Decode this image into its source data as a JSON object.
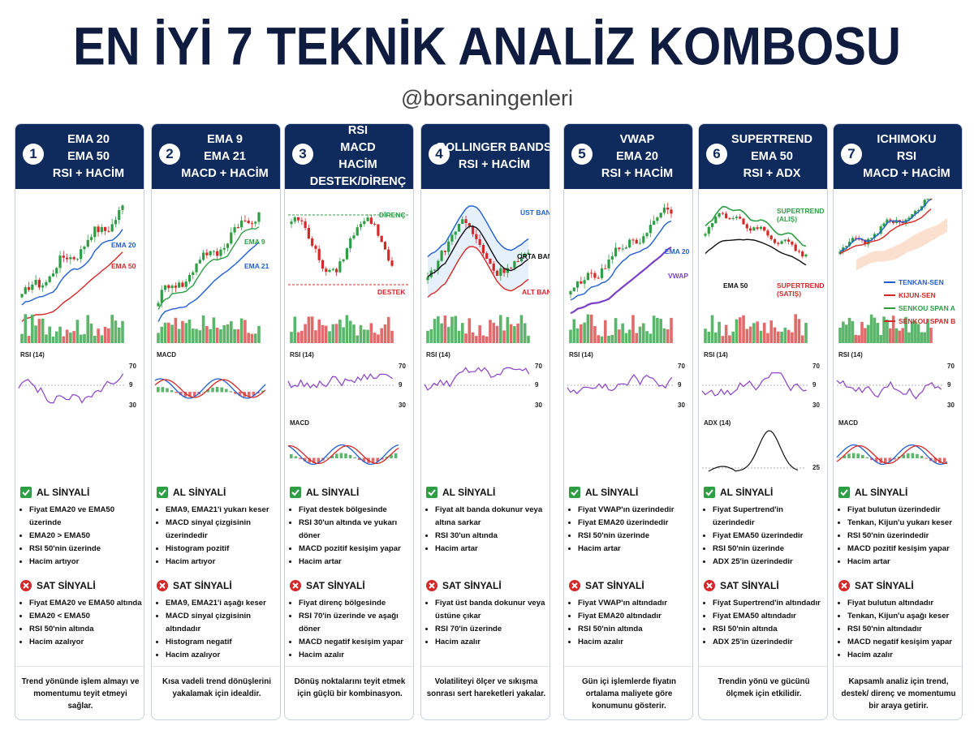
{
  "header": {
    "title": "EN İYİ 7 TEKNİK ANALİZ KOMBOSU",
    "handle": "@borsaningenleri"
  },
  "cards": [
    {
      "number": "1",
      "title": [
        "EMA 20",
        "EMA 50",
        "RSI + HACİM"
      ],
      "chart_labels": [
        "EMA 20",
        "EMA 50"
      ],
      "panels": [
        {
          "label": "RSI (14)",
          "levels": [
            "70",
            "9",
            "30"
          ]
        }
      ],
      "buy": {
        "title": "AL SİNYALİ",
        "items": [
          "Fiyat EMA20 ve EMA50 üzerinde",
          "EMA20 > EMA50",
          "RSI 50'nin üzerinde",
          "Hacim artıyor"
        ]
      },
      "sell": {
        "title": "SAT SİNYALİ",
        "items": [
          "Fiyat EMA20 ve EMA50 altında",
          "EMA20 < EMA50",
          "RSI 50'nin altında",
          "Hacim azalıyor"
        ]
      },
      "note": "Trend yönünde işlem almayı ve momentumu teyit etmeyi sağlar."
    },
    {
      "number": "2",
      "title": [
        "EMA 9",
        "EMA 21",
        "MACD + HACİM"
      ],
      "chart_labels": [
        "EMA 9",
        "EMA 21"
      ],
      "panels": [
        {
          "label": "MACD"
        }
      ],
      "buy": {
        "title": "AL SİNYALİ",
        "items": [
          "EMA9, EMA21'i yukarı keser",
          "MACD sinyal çizgisinin üzerindedir",
          "Histogram pozitif",
          "Hacim artıyor"
        ]
      },
      "sell": {
        "title": "SAT SİNYALİ",
        "items": [
          "EMA9, EMA21'i aşağı keser",
          "MACD sinyal çizgisinin altındadır",
          "Histogram negatif",
          "Hacim azalıyor"
        ]
      },
      "note": "Kısa vadeli trend dönüşlerini yakalamak için idealdir."
    },
    {
      "number": "3",
      "title": [
        "RSI",
        "MACD",
        "HACİM",
        "DESTEK/DİRENÇ"
      ],
      "chart_labels": [
        "DİRENÇ",
        "DESTEK"
      ],
      "panels": [
        {
          "label": "RSI (14)",
          "levels": [
            "70",
            "9",
            "30"
          ]
        },
        {
          "label": "MACD"
        }
      ],
      "buy": {
        "title": "AL SİNYALİ",
        "items": [
          "Fiyat destek bölgesinde",
          "RSI 30'un altında ve yukarı döner",
          "MACD pozitif kesişim yapar",
          "Hacim artar"
        ]
      },
      "sell": {
        "title": "SAT SİNYALİ",
        "items": [
          "Fiyat direnç bölgesinde",
          "RSI 70'in üzerinde ve aşağı döner",
          "MACD negatif kesişim yapar",
          "Hacim azalır"
        ]
      },
      "note": "Dönüş noktalarını teyit etmek için güçlü bir kombinasyon."
    },
    {
      "number": "4",
      "title": [
        "BOLLINGER BANDS",
        "RSI + HACİM"
      ],
      "chart_labels": [
        "ÜST BAND",
        "ORTA BAND",
        "ALT BAND"
      ],
      "panels": [
        {
          "label": "RSI (14)",
          "levels": [
            "70",
            "9",
            "30"
          ]
        }
      ],
      "buy": {
        "title": "AL SİNYALİ",
        "items": [
          "Fiyat alt banda dokunur veya altına sarkar",
          "RSI 30'un altında",
          "Hacim artar"
        ]
      },
      "sell": {
        "title": "SAT SİNYALİ",
        "items": [
          "Fiyat üst banda dokunur veya üstüne çıkar",
          "RSI 70'in üzerinde",
          "Hacim azalır"
        ]
      },
      "note": "Volatiliteyi ölçer ve sıkışma sonrası sert hareketleri yakalar."
    },
    {
      "number": "5",
      "title": [
        "VWAP",
        "EMA 20",
        "RSI + HACİM"
      ],
      "chart_labels": [
        "EMA 20",
        "VWAP"
      ],
      "panels": [
        {
          "label": "RSI (14)",
          "levels": [
            "70",
            "9",
            "30"
          ]
        }
      ],
      "buy": {
        "title": "AL SİNYALİ",
        "items": [
          "Fiyat VWAP'ın üzerindedir",
          "Fiyat EMA20 üzerindedir",
          "RSI 50'nin üzerinde",
          "Hacim artar"
        ]
      },
      "sell": {
        "title": "SAT SİNYALİ",
        "items": [
          "Fiyat VWAP'ın altındadır",
          "Fiyat EMA20 altındadır",
          "RSI 50'nin altında",
          "Hacim azalır"
        ]
      },
      "note": "Gün içi işlemlerde fiyatın ortalama maliyete göre konumunu gösterir."
    },
    {
      "number": "6",
      "title": [
        "SUPERTREND",
        "EMA 50",
        "RSI + ADX"
      ],
      "chart_labels": [
        "SUPERTREND (ALIŞ)",
        "EMA 50",
        "SUPERTREND (SATIŞ)"
      ],
      "panels": [
        {
          "label": "RSI (14)",
          "levels": [
            "70",
            "9",
            "30"
          ]
        },
        {
          "label": "ADX (14)",
          "levels": [
            "25"
          ]
        }
      ],
      "buy": {
        "title": "AL SİNYALİ",
        "items": [
          "Fiyat Supertrend'in üzerindedir",
          "Fiyat EMA50 üzerindedir",
          "RSI 50'nin üzerinde",
          "ADX 25'in üzerindedir"
        ]
      },
      "sell": {
        "title": "SAT SİNYALİ",
        "items": [
          "Fiyat Supertrend'in altındadır",
          "Fiyat EMA50 altındadır",
          "RSI 50'nin altında",
          "ADX 25'in üzerindedir"
        ]
      },
      "note": "Trendin yönü ve gücünü ölçmek için etkilidir."
    },
    {
      "number": "7",
      "title": [
        "ICHIMOKU",
        "RSI",
        "MACD + HACİM"
      ],
      "chart_labels": [
        "TENKAN-SEN",
        "KIJUN-SEN",
        "SENKOU SPAN A",
        "SENKOU SPAN B"
      ],
      "panels": [
        {
          "label": "RSI (14)",
          "levels": [
            "70",
            "9",
            "30"
          ]
        },
        {
          "label": "MACD"
        }
      ],
      "buy": {
        "title": "AL SİNYALİ",
        "items": [
          "Fiyat bulutun üzerindedir",
          "Tenkan, Kijun'u yukarı keser",
          "RSI 50'nin üzerindedir",
          "MACD pozitif kesişim yapar",
          "Hacim artar"
        ]
      },
      "sell": {
        "title": "SAT SİNYALİ",
        "items": [
          "Fiyat bulutun altındadır",
          "Tenkan, Kijun'u aşağı keser",
          "RSI 50'nin altındadır",
          "MACD negatif kesişim yapar",
          "Hacim azalır"
        ]
      },
      "note": "Kapsamlı analiz için trend, destek/ direnç ve momentumu bir araya getirir."
    }
  ]
}
